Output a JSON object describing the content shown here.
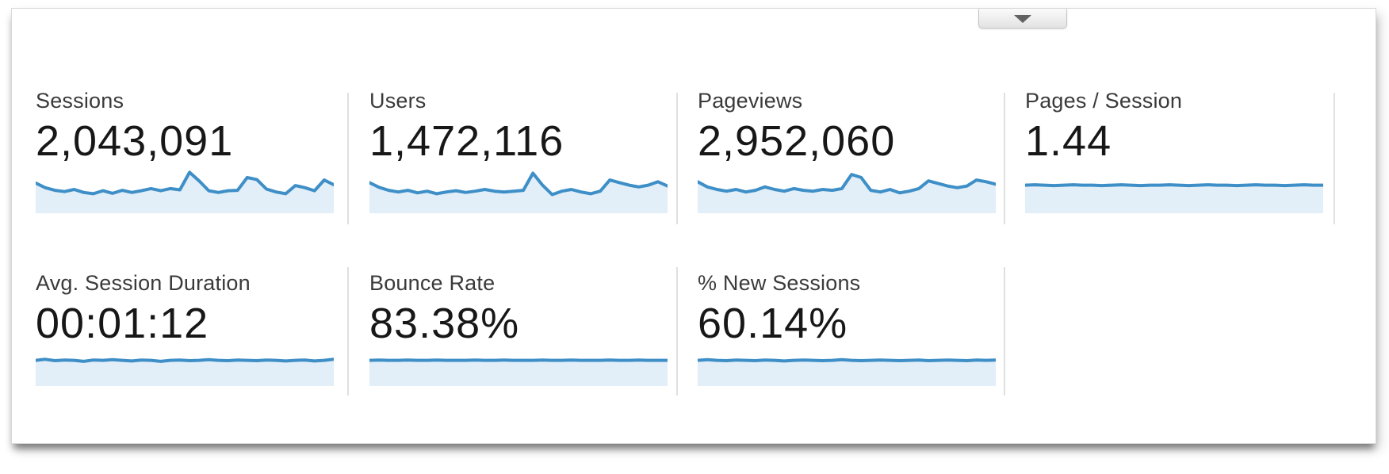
{
  "colors": {
    "spark_line": "#3e8fc7",
    "spark_fill": "#e2eef8",
    "divider": "#e0e0e0",
    "value_text": "#171717",
    "label_text": "#3a3a3a"
  },
  "collapse_button": {
    "icon": "triangle-down-icon"
  },
  "metrics": [
    {
      "label": "Sessions",
      "value": "2,043,091"
    },
    {
      "label": "Users",
      "value": "1,472,116"
    },
    {
      "label": "Pageviews",
      "value": "2,952,060"
    },
    {
      "label": "Pages / Session",
      "value": "1.44"
    },
    {
      "label": "Avg. Session Duration",
      "value": "00:01:12"
    },
    {
      "label": "Bounce Rate",
      "value": "83.38%"
    },
    {
      "label": "% New Sessions",
      "value": "60.14%"
    }
  ],
  "chart_data": [
    {
      "type": "area",
      "title": "Sessions sparkline",
      "xlabel": "",
      "ylabel": "",
      "axes_shown": false,
      "y_scale": "relative 0-1 (no axis labels in UI)",
      "values": [
        0.65,
        0.54,
        0.48,
        0.45,
        0.5,
        0.43,
        0.4,
        0.47,
        0.41,
        0.48,
        0.43,
        0.47,
        0.52,
        0.47,
        0.52,
        0.49,
        0.9,
        0.7,
        0.47,
        0.43,
        0.47,
        0.48,
        0.78,
        0.73,
        0.51,
        0.44,
        0.4,
        0.59,
        0.54,
        0.47,
        0.72,
        0.61
      ]
    },
    {
      "type": "area",
      "title": "Users sparkline",
      "xlabel": "",
      "ylabel": "",
      "axes_shown": false,
      "y_scale": "relative 0-1 (no axis labels in UI)",
      "values": [
        0.66,
        0.55,
        0.48,
        0.44,
        0.48,
        0.42,
        0.46,
        0.4,
        0.44,
        0.47,
        0.43,
        0.46,
        0.5,
        0.46,
        0.44,
        0.46,
        0.48,
        0.88,
        0.6,
        0.38,
        0.46,
        0.5,
        0.44,
        0.4,
        0.46,
        0.72,
        0.66,
        0.6,
        0.56,
        0.6,
        0.68,
        0.58
      ]
    },
    {
      "type": "area",
      "title": "Pageviews sparkline",
      "xlabel": "",
      "ylabel": "",
      "axes_shown": false,
      "y_scale": "relative 0-1 (no axis labels in UI)",
      "values": [
        0.68,
        0.56,
        0.5,
        0.46,
        0.5,
        0.44,
        0.48,
        0.56,
        0.5,
        0.46,
        0.52,
        0.48,
        0.46,
        0.5,
        0.48,
        0.52,
        0.85,
        0.78,
        0.48,
        0.44,
        0.5,
        0.42,
        0.46,
        0.52,
        0.7,
        0.64,
        0.58,
        0.54,
        0.58,
        0.72,
        0.68,
        0.62
      ]
    },
    {
      "type": "area",
      "title": "Pages / Session sparkline",
      "xlabel": "",
      "ylabel": "",
      "axes_shown": false,
      "y_scale": "relative 0-1 (no axis labels in UI)",
      "values": [
        0.6,
        0.61,
        0.6,
        0.59,
        0.6,
        0.61,
        0.6,
        0.6,
        0.59,
        0.6,
        0.61,
        0.6,
        0.59,
        0.6,
        0.6,
        0.61,
        0.6,
        0.59,
        0.6,
        0.61,
        0.6,
        0.6,
        0.59,
        0.6,
        0.61,
        0.6,
        0.6,
        0.59,
        0.6,
        0.61,
        0.6,
        0.6
      ]
    },
    {
      "type": "area",
      "title": "Avg. Session Duration sparkline",
      "xlabel": "",
      "ylabel": "",
      "axes_shown": false,
      "y_scale": "relative 0-1 (no axis labels in UI)",
      "values": [
        0.7,
        0.73,
        0.69,
        0.71,
        0.7,
        0.67,
        0.71,
        0.7,
        0.72,
        0.7,
        0.68,
        0.71,
        0.7,
        0.67,
        0.7,
        0.71,
        0.69,
        0.7,
        0.72,
        0.7,
        0.69,
        0.71,
        0.7,
        0.69,
        0.71,
        0.7,
        0.68,
        0.7,
        0.71,
        0.68,
        0.7,
        0.73
      ]
    },
    {
      "type": "area",
      "title": "Bounce Rate sparkline",
      "xlabel": "",
      "ylabel": "",
      "axes_shown": false,
      "y_scale": "relative 0-1 (no axis labels in UI)",
      "values": [
        0.7,
        0.71,
        0.7,
        0.7,
        0.71,
        0.7,
        0.7,
        0.71,
        0.7,
        0.7,
        0.7,
        0.71,
        0.7,
        0.7,
        0.71,
        0.7,
        0.7,
        0.7,
        0.71,
        0.7,
        0.7,
        0.71,
        0.7,
        0.7,
        0.7,
        0.71,
        0.7,
        0.7,
        0.71,
        0.7,
        0.7,
        0.7
      ]
    },
    {
      "type": "area",
      "title": "% New Sessions sparkline",
      "xlabel": "",
      "ylabel": "",
      "axes_shown": false,
      "y_scale": "relative 0-1 (no axis labels in UI)",
      "values": [
        0.7,
        0.72,
        0.7,
        0.69,
        0.71,
        0.7,
        0.69,
        0.71,
        0.7,
        0.68,
        0.7,
        0.71,
        0.7,
        0.69,
        0.7,
        0.72,
        0.7,
        0.69,
        0.7,
        0.71,
        0.7,
        0.69,
        0.7,
        0.71,
        0.69,
        0.7,
        0.71,
        0.7,
        0.69,
        0.71,
        0.7,
        0.71
      ]
    }
  ]
}
